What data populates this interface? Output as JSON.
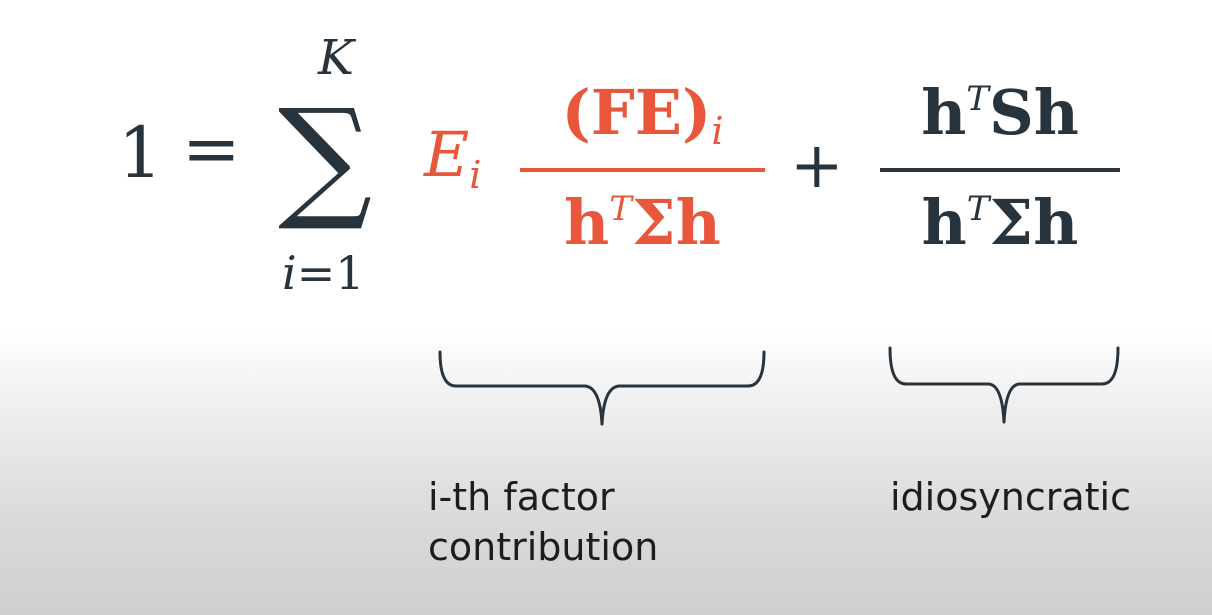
{
  "equation": {
    "lhs": "1",
    "equals": "=",
    "sum_symbol": "∑",
    "sum_upper": "K",
    "sum_lower_var": "i",
    "sum_lower_rest": "=1",
    "term1_coef": "E",
    "term1_coef_sub": "i",
    "term1_num": "(FE)",
    "term1_num_sub": "i",
    "term1_den_h": "h",
    "term1_den_sup": "T",
    "term1_den_rest": "Σh",
    "plus": "+",
    "term2_num_h": "h",
    "term2_num_sup": "T",
    "term2_num_rest": "Sh",
    "term2_den_h": "h",
    "term2_den_sup": "T",
    "term2_den_rest": "Σh"
  },
  "labels": {
    "factor_line1": "i-th factor",
    "factor_line2": "contribution",
    "idiosyncratic": "idiosyncratic"
  },
  "colors": {
    "accent": "#e8563c",
    "text": "#27333d"
  }
}
